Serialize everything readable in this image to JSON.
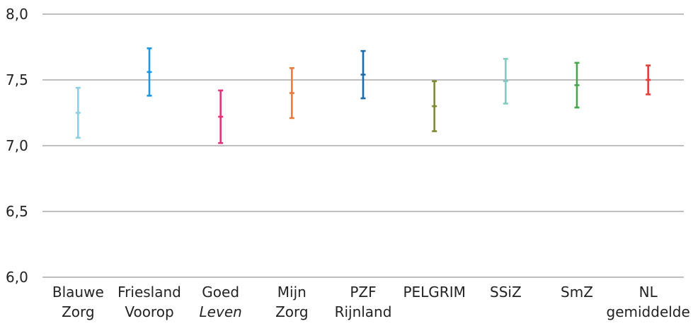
{
  "chart_data": {
    "type": "errorbar",
    "title": "",
    "xlabel": "",
    "ylabel": "",
    "ylim": [
      6.0,
      8.0
    ],
    "yticks": [
      "6,0",
      "6,5",
      "7,0",
      "7,5",
      "8,0"
    ],
    "grid": true,
    "categories": [
      [
        "Blauwe",
        "Zorg"
      ],
      [
        "Friesland",
        "Voorop"
      ],
      [
        "Goed",
        "Leven"
      ],
      [
        "Mijn",
        "Zorg"
      ],
      [
        "PZF",
        "Rijnland"
      ],
      [
        "PELGRIM"
      ],
      [
        "SSiZ"
      ],
      [
        "SmZ"
      ],
      [
        "NL",
        "gemiddelde"
      ]
    ],
    "italic_second_line": [
      false,
      false,
      true,
      false,
      false,
      false,
      false,
      false,
      false
    ],
    "series": [
      {
        "low": 7.06,
        "mean": 7.25,
        "high": 7.44,
        "color": "#8ecfe8"
      },
      {
        "low": 7.38,
        "mean": 7.56,
        "high": 7.74,
        "color": "#1e96e0"
      },
      {
        "low": 7.02,
        "mean": 7.22,
        "high": 7.42,
        "color": "#e0347a"
      },
      {
        "low": 7.21,
        "mean": 7.4,
        "high": 7.59,
        "color": "#f07a36"
      },
      {
        "low": 7.36,
        "mean": 7.54,
        "high": 7.72,
        "color": "#1f6aa8"
      },
      {
        "low": 7.11,
        "mean": 7.3,
        "high": 7.49,
        "color": "#7f8a32"
      },
      {
        "low": 7.32,
        "mean": 7.49,
        "high": 7.66,
        "color": "#86cbc3"
      },
      {
        "low": 7.29,
        "mean": 7.46,
        "high": 7.63,
        "color": "#46a84c"
      },
      {
        "low": 7.39,
        "mean": 7.5,
        "high": 7.61,
        "color": "#e0403a"
      }
    ]
  }
}
